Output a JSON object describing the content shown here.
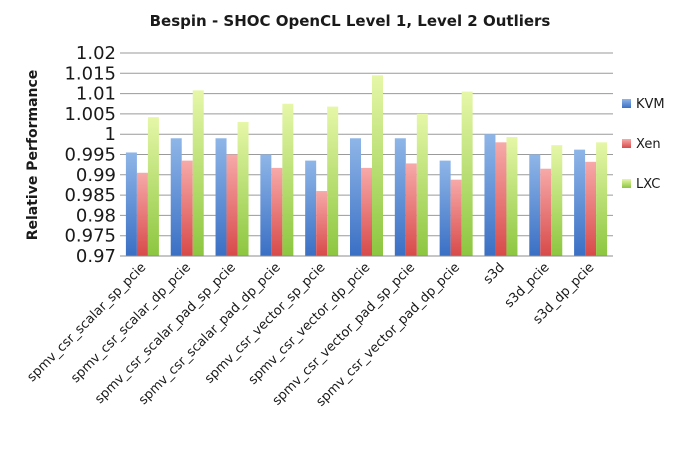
{
  "chart_data": {
    "type": "bar",
    "title": "Bespin - SHOC OpenCL Level 1, Level 2 Outliers",
    "xlabel": "",
    "ylabel": "Relative Performance",
    "ylim": [
      0.97,
      1.02
    ],
    "yticks": [
      "0.97",
      "0.975",
      "0.98",
      "0.985",
      "0.99",
      "0.995",
      "1",
      "1.005",
      "1.01",
      "1.015",
      "1.02"
    ],
    "grid": true,
    "legend_position": "right",
    "categories": [
      "spmv_csr_scalar_sp_pcie",
      "spmv_csr_scalar_dp_pcie",
      "spmv_csr_scalar_pad_sp_pcie",
      "spmv_csr_scalar_pad_dp_pcie",
      "spmv_csr_vector_sp_pcie",
      "spmv_csr_vector_dp_pcie",
      "spmv_csr_vector_pad_sp_pcie",
      "spmv_csr_vector_pad_dp_pcie",
      "s3d",
      "s3d_pcie",
      "s3d_dp_pcie"
    ],
    "series": [
      {
        "name": "KVM",
        "color": "#4f81bd",
        "values": [
          0.9955,
          0.999,
          0.999,
          0.995,
          0.9935,
          0.999,
          0.999,
          0.9935,
          1.0,
          0.995,
          0.9962
        ]
      },
      {
        "name": "Xen",
        "color": "#e06666",
        "values": [
          0.9905,
          0.9935,
          0.995,
          0.9917,
          0.986,
          0.9917,
          0.9928,
          0.9888,
          0.998,
          0.9915,
          0.9932
        ]
      },
      {
        "name": "LXC",
        "color": "#9bbb59",
        "values": [
          1.0042,
          1.0108,
          1.003,
          1.0075,
          1.0068,
          1.0145,
          1.005,
          1.0105,
          0.9993,
          0.9973,
          0.998
        ]
      }
    ]
  }
}
